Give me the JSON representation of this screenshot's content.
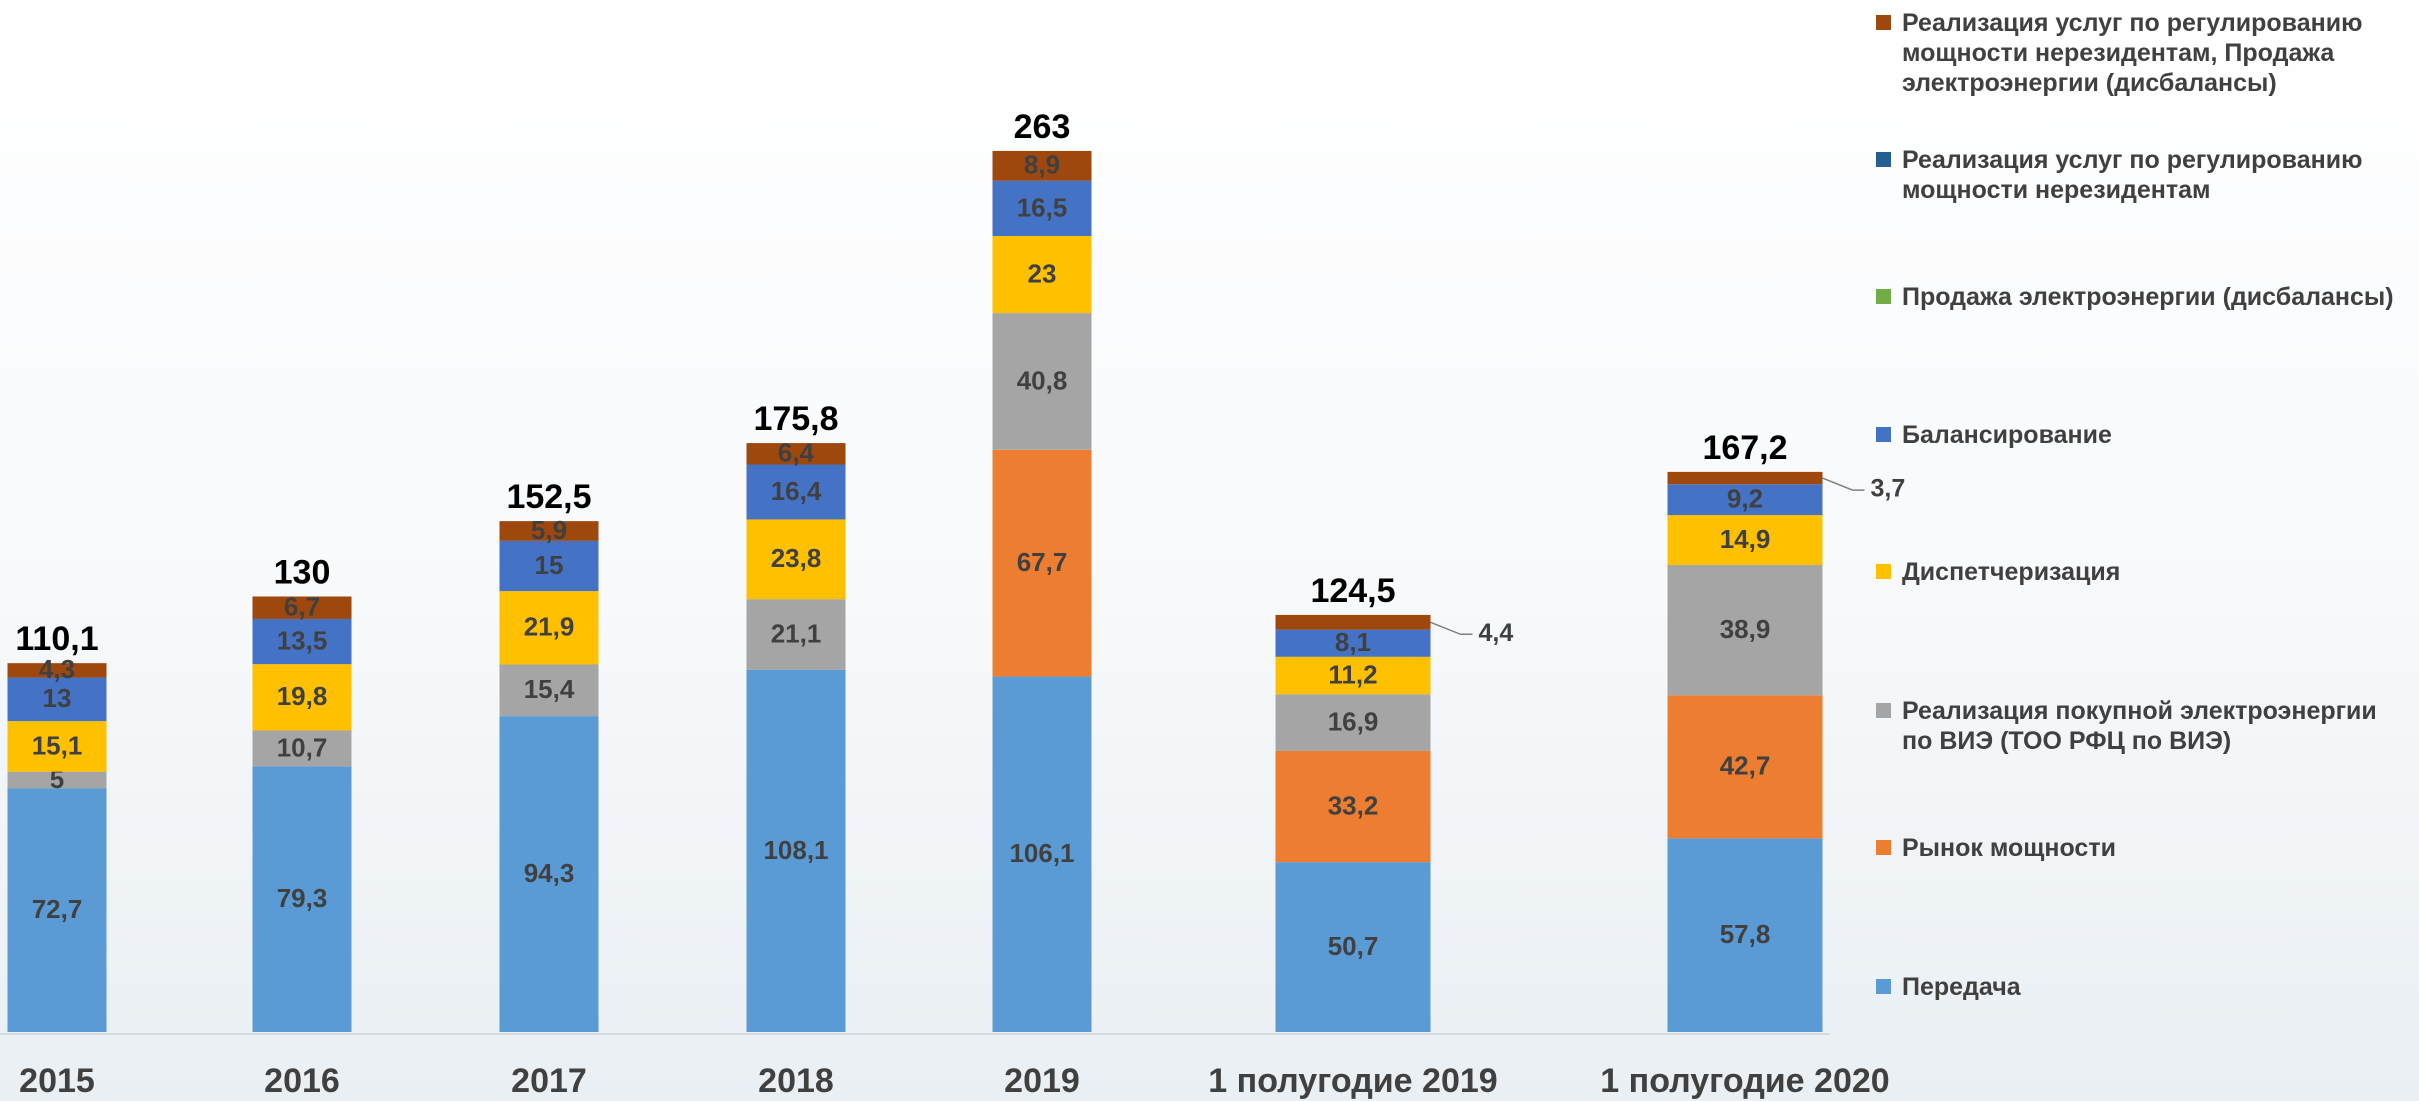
{
  "chart_data": {
    "type": "bar",
    "stacked": true,
    "categories": [
      "2015",
      "2016",
      "2017",
      "2018",
      "2019",
      "1 полугодие 2019",
      "1 полугодие 2020"
    ],
    "series": [
      {
        "name": "Передача",
        "color": "#5b9bd5",
        "values": [
          72.7,
          79.3,
          94.3,
          108.1,
          106.1,
          50.7,
          57.8
        ],
        "value_labels": [
          "72,7",
          "79,3",
          "94,3",
          "108,1",
          "106,1",
          "50,7",
          "57,8"
        ]
      },
      {
        "name": "Рынок мощности",
        "color": "#ed7d31",
        "values": [
          null,
          null,
          null,
          null,
          67.7,
          33.2,
          42.7
        ],
        "value_labels": [
          null,
          null,
          null,
          null,
          "67,7",
          "33,2",
          "42,7"
        ]
      },
      {
        "name": "Реализация покупной электроэнергии по ВИЭ (ТОО РФЦ по ВИЭ)",
        "color": "#a5a5a5",
        "values": [
          5,
          10.7,
          15.4,
          21.1,
          40.8,
          16.9,
          38.9
        ],
        "value_labels": [
          "5",
          "10,7",
          "15,4",
          "21,1",
          "40,8",
          "16,9",
          "38,9"
        ]
      },
      {
        "name": "Диспетчеризация",
        "color": "#ffc000",
        "values": [
          15.1,
          19.8,
          21.9,
          23.8,
          23,
          11.2,
          14.9
        ],
        "value_labels": [
          "15,1",
          "19,8",
          "21,9",
          "23,8",
          "23",
          "11,2",
          "14,9"
        ]
      },
      {
        "name": "Балансирование",
        "color": "#4472c4",
        "values": [
          13,
          13.5,
          15,
          16.4,
          16.5,
          8.1,
          9.2
        ],
        "value_labels": [
          "13",
          "13,5",
          "15",
          "16,4",
          "16,5",
          "8,1",
          "9,2"
        ]
      },
      {
        "name": "Продажа электроэнергии (дисбалансы)",
        "color": "#70ad47",
        "values": [
          null,
          null,
          null,
          null,
          null,
          null,
          null
        ]
      },
      {
        "name": "Реализация услуг по регулированию мощности нерезидентам",
        "color": "#255e91",
        "values": [
          null,
          null,
          null,
          null,
          null,
          null,
          null
        ]
      },
      {
        "name": "Реализация услуг по регулированию мощности нерезидентам, Продажа электроэнергии (дисбалансы)",
        "color": "#9e480e",
        "values": [
          4.3,
          6.7,
          5.9,
          6.4,
          8.9,
          4.4,
          3.7
        ],
        "value_labels": [
          "4,3",
          "6,7",
          "5,9",
          "6,4",
          "8,9",
          "4,4",
          "3,7"
        ]
      }
    ],
    "totals": [
      110.1,
      130,
      152.5,
      175.8,
      263,
      124.5,
      167.2
    ],
    "total_labels": [
      "110,1",
      "130",
      "152,5",
      "175,8",
      "263",
      "124,5",
      "167,2"
    ]
  }
}
